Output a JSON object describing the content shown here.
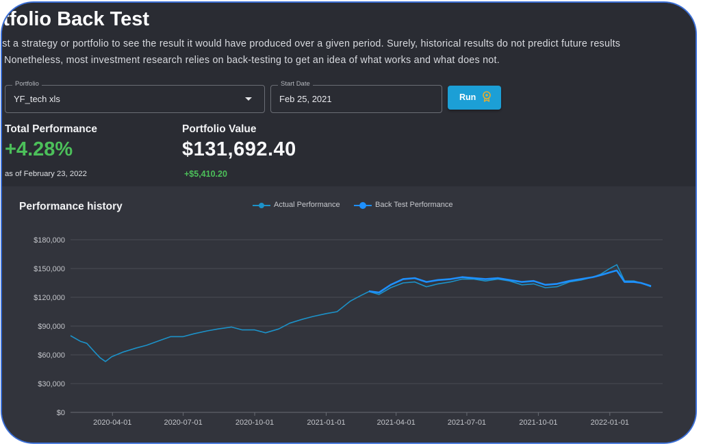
{
  "header": {
    "title": "rtfolio Back Test",
    "description_line1": "est a strategy or portfolio to see the result it would have produced over a given period. Surely, historical results do not predict future results",
    "description_line2": "Nonetheless, most investment research relies on back-testing to get an idea of what works and what does not."
  },
  "form": {
    "portfolio": {
      "label": "Portfolio",
      "value": "YF_tech xls"
    },
    "start_date": {
      "label": "Start Date",
      "value": "Feb 25, 2021"
    },
    "run_label": "Run",
    "run_icon": "badge-icon"
  },
  "summary": {
    "total_performance_label": "Total Performance",
    "total_performance_value": "+4.28%",
    "as_of": "as of February 23, 2022",
    "portfolio_value_label": "Portfolio Value",
    "portfolio_value": "$131,692.40",
    "portfolio_change": "+$5,410.20"
  },
  "colors": {
    "positive": "#4cc05a",
    "actual_series": "#1c92c9",
    "backtest_series": "#1e90ff",
    "button": "#1c9fd6"
  },
  "chart_data": {
    "type": "line",
    "title": "Performance history",
    "legend_position": "top-center",
    "grid": true,
    "ylim": [
      0,
      180000
    ],
    "y_ticks": [
      "$0",
      "$30,000",
      "$60,000",
      "$90,000",
      "$120,000",
      "$150,000",
      "$180,000"
    ],
    "x_ticks": [
      "2020-04-01",
      "2020-07-01",
      "2020-10-01",
      "2021-01-01",
      "2021-04-01",
      "2021-07-01",
      "2021-10-01",
      "2022-01-01"
    ],
    "xlim": [
      "2020-02-07",
      "2022-03-10"
    ],
    "series": [
      {
        "name": "Actual Performance",
        "x": [
          "2020-02-07",
          "2020-02-20",
          "2020-02-28",
          "2020-03-09",
          "2020-03-16",
          "2020-03-23",
          "2020-03-31",
          "2020-04-15",
          "2020-05-01",
          "2020-05-15",
          "2020-06-01",
          "2020-06-15",
          "2020-07-01",
          "2020-07-15",
          "2020-08-01",
          "2020-08-15",
          "2020-09-01",
          "2020-09-15",
          "2020-10-01",
          "2020-10-15",
          "2020-11-01",
          "2020-11-15",
          "2020-12-01",
          "2020-12-15",
          "2021-01-01",
          "2021-01-15",
          "2021-02-01",
          "2021-02-15",
          "2021-02-25",
          "2021-03-10",
          "2021-03-25",
          "2021-04-10",
          "2021-04-25",
          "2021-05-10",
          "2021-05-25",
          "2021-06-10",
          "2021-06-25",
          "2021-07-10",
          "2021-07-25",
          "2021-08-10",
          "2021-08-25",
          "2021-09-10",
          "2021-09-25",
          "2021-10-10",
          "2021-10-25",
          "2021-11-10",
          "2021-11-25",
          "2021-12-10",
          "2021-12-20",
          "2022-01-01",
          "2022-01-10",
          "2022-01-20",
          "2022-02-01",
          "2022-02-10",
          "2022-02-23"
        ],
        "values": [
          80000,
          74000,
          72000,
          63000,
          57000,
          53000,
          58000,
          63000,
          67000,
          70000,
          75000,
          79000,
          79000,
          82000,
          85000,
          87000,
          89000,
          86000,
          86000,
          83000,
          87000,
          93000,
          97000,
          100000,
          103000,
          105000,
          116000,
          122000,
          126000,
          123000,
          130000,
          135000,
          136000,
          131000,
          134000,
          136000,
          139000,
          139000,
          137000,
          139000,
          137000,
          133000,
          134000,
          130000,
          131000,
          136000,
          138000,
          141000,
          144000,
          150000,
          154000,
          137000,
          137000,
          135000,
          131000
        ]
      },
      {
        "name": "Back Test Performance",
        "x": [
          "2021-02-25",
          "2021-03-10",
          "2021-03-25",
          "2021-04-10",
          "2021-04-25",
          "2021-05-10",
          "2021-05-25",
          "2021-06-10",
          "2021-06-25",
          "2021-07-10",
          "2021-07-25",
          "2021-08-10",
          "2021-08-25",
          "2021-09-10",
          "2021-09-25",
          "2021-10-10",
          "2021-10-25",
          "2021-11-10",
          "2021-11-25",
          "2021-12-10",
          "2021-12-20",
          "2022-01-01",
          "2022-01-10",
          "2022-01-20",
          "2022-02-01",
          "2022-02-10",
          "2022-02-23"
        ],
        "values": [
          126290,
          125000,
          133000,
          139000,
          140000,
          136000,
          138000,
          139000,
          141000,
          140000,
          139000,
          140000,
          138000,
          136000,
          137000,
          133000,
          134000,
          137000,
          139000,
          141000,
          143000,
          146000,
          148000,
          136000,
          136000,
          135000,
          131692
        ]
      }
    ]
  }
}
